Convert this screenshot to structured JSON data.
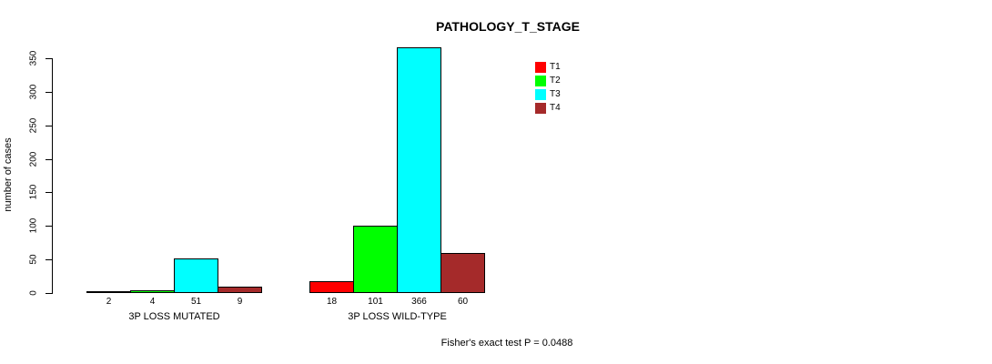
{
  "title": "PATHOLOGY_T_STAGE",
  "y_axis": {
    "label": "number of cases"
  },
  "footer": "Fisher's exact test P = 0.0488",
  "chart_data": {
    "type": "bar",
    "title": "PATHOLOGY_T_STAGE",
    "ylabel": "number of cases",
    "xlabel": "",
    "categories": [
      "3P LOSS MUTATED",
      "3P LOSS WILD-TYPE"
    ],
    "series": [
      {
        "name": "T1",
        "color": "#FF0000",
        "values": [
          2,
          18
        ]
      },
      {
        "name": "T2",
        "color": "#00FF00",
        "values": [
          4,
          101
        ]
      },
      {
        "name": "T3",
        "color": "#00FFFF",
        "values": [
          51,
          366
        ]
      },
      {
        "name": "T4",
        "color": "#A52A2A",
        "values": [
          9,
          60
        ]
      }
    ],
    "bar_value_labels": [
      [
        2,
        4,
        51,
        9
      ],
      [
        18,
        101,
        366,
        60
      ]
    ],
    "ylim": [
      0,
      350
    ],
    "yticks": [
      0,
      50,
      100,
      150,
      200,
      250,
      300,
      350
    ],
    "legend_position": "top-right",
    "grid": false,
    "annotation": "Fisher's exact test P = 0.0488"
  }
}
